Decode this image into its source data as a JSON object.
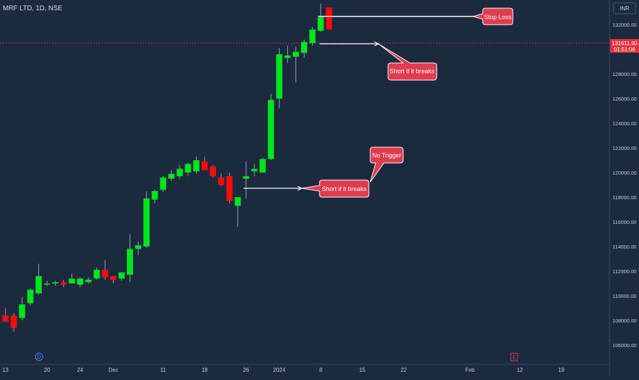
{
  "header": {
    "symbol_label": "MRF LTD, 1D, NSE"
  },
  "currency_badge": "INR",
  "price_tag": {
    "price": "131611.90",
    "countdown": "01:51:06"
  },
  "colors": {
    "background": "#1b2a3f",
    "up": "#00e51c",
    "down": "#ff0a0a",
    "callout": "#e03c50",
    "axis_text": "#c8ced6"
  },
  "chart_data": {
    "type": "candlestick",
    "ylim": [
      105000,
      134500
    ],
    "y_ticks": [
      106000,
      108000,
      110000,
      112000,
      114000,
      116000,
      118000,
      120000,
      122000,
      124000,
      126000,
      128000,
      130000,
      132000
    ],
    "y_tick_labels": [
      "106000.00",
      "108000.00",
      "110000.00",
      "112000.00",
      "114000.00",
      "116000.00",
      "118000.00",
      "120000.00",
      "122000.00",
      "124000.00",
      "126000.00",
      "128000.00",
      "130000.00",
      "132000.00"
    ],
    "x_ticks": [
      {
        "label": "13",
        "idx": 0
      },
      {
        "label": "20",
        "idx": 5
      },
      {
        "label": "24",
        "idx": 9
      },
      {
        "label": "Dec",
        "idx": 13
      },
      {
        "label": "11",
        "idx": 19
      },
      {
        "label": "18",
        "idx": 24
      },
      {
        "label": "26",
        "idx": 29
      },
      {
        "label": "2024",
        "idx": 33
      },
      {
        "label": "8",
        "idx": 38
      },
      {
        "label": "15",
        "idx": 43
      },
      {
        "label": "22",
        "idx": 48
      },
      {
        "label": "Feb",
        "idx": 56
      },
      {
        "label": "12",
        "idx": 62
      },
      {
        "label": "19",
        "idx": 67
      }
    ],
    "candles": [
      {
        "o": 108400,
        "h": 109000,
        "l": 107900,
        "c": 107900
      },
      {
        "o": 108400,
        "h": 108600,
        "l": 107100,
        "c": 107400
      },
      {
        "o": 108200,
        "h": 109900,
        "l": 108000,
        "c": 109300
      },
      {
        "o": 109400,
        "h": 110600,
        "l": 109200,
        "c": 110500
      },
      {
        "o": 110200,
        "h": 112600,
        "l": 110100,
        "c": 111600
      },
      {
        "o": 111000,
        "h": 111200,
        "l": 110800,
        "c": 111000
      },
      {
        "o": 111000,
        "h": 111200,
        "l": 110800,
        "c": 111100
      },
      {
        "o": 111100,
        "h": 111300,
        "l": 110700,
        "c": 110900
      },
      {
        "o": 111000,
        "h": 111800,
        "l": 111000,
        "c": 111400
      },
      {
        "o": 110900,
        "h": 111500,
        "l": 110700,
        "c": 111400
      },
      {
        "o": 111100,
        "h": 111500,
        "l": 111000,
        "c": 111300
      },
      {
        "o": 111400,
        "h": 112300,
        "l": 111300,
        "c": 112100
      },
      {
        "o": 112100,
        "h": 112900,
        "l": 111300,
        "c": 111500
      },
      {
        "o": 111600,
        "h": 111600,
        "l": 111000,
        "c": 111300
      },
      {
        "o": 111400,
        "h": 111800,
        "l": 111200,
        "c": 111900
      },
      {
        "o": 111700,
        "h": 115000,
        "l": 111100,
        "c": 113800
      },
      {
        "o": 113800,
        "h": 114400,
        "l": 113300,
        "c": 114100
      },
      {
        "o": 114000,
        "h": 118500,
        "l": 113900,
        "c": 117900
      },
      {
        "o": 117800,
        "h": 118600,
        "l": 117500,
        "c": 118500
      },
      {
        "o": 118600,
        "h": 119700,
        "l": 118400,
        "c": 119600
      },
      {
        "o": 119500,
        "h": 120200,
        "l": 119300,
        "c": 119900
      },
      {
        "o": 119700,
        "h": 120600,
        "l": 119500,
        "c": 120300
      },
      {
        "o": 120000,
        "h": 120800,
        "l": 119700,
        "c": 120700
      },
      {
        "o": 120100,
        "h": 121300,
        "l": 119900,
        "c": 121000
      },
      {
        "o": 120900,
        "h": 121300,
        "l": 120200,
        "c": 120200
      },
      {
        "o": 120500,
        "h": 120600,
        "l": 119600,
        "c": 119700
      },
      {
        "o": 119600,
        "h": 119900,
        "l": 118900,
        "c": 119000
      },
      {
        "o": 119700,
        "h": 120000,
        "l": 117500,
        "c": 117700
      },
      {
        "o": 117300,
        "h": 117900,
        "l": 115600,
        "c": 118000
      },
      {
        "o": 119500,
        "h": 120900,
        "l": 117900,
        "c": 119700
      },
      {
        "o": 120100,
        "h": 120700,
        "l": 119700,
        "c": 120300
      },
      {
        "o": 120000,
        "h": 121200,
        "l": 120000,
        "c": 121100
      },
      {
        "o": 121100,
        "h": 126400,
        "l": 121000,
        "c": 125900
      },
      {
        "o": 126000,
        "h": 130100,
        "l": 125200,
        "c": 129600
      },
      {
        "o": 129300,
        "h": 130300,
        "l": 128900,
        "c": 129500
      },
      {
        "o": 129400,
        "h": 130200,
        "l": 127300,
        "c": 129800
      },
      {
        "o": 129700,
        "h": 130800,
        "l": 129300,
        "c": 130600
      },
      {
        "o": 130500,
        "h": 131800,
        "l": 130300,
        "c": 131600
      },
      {
        "o": 131500,
        "h": 133700,
        "l": 131400,
        "c": 132600
      },
      {
        "o": 133400,
        "h": 133400,
        "l": 131600,
        "c": 131612
      }
    ],
    "annotations": [
      {
        "text": "Stop Loss"
      },
      {
        "text": "Short if it breaks"
      },
      {
        "text": "No Trigger"
      },
      {
        "text": "Short if it breaks"
      }
    ],
    "markers": [
      {
        "text": "D"
      },
      {
        "text": "E"
      }
    ]
  }
}
